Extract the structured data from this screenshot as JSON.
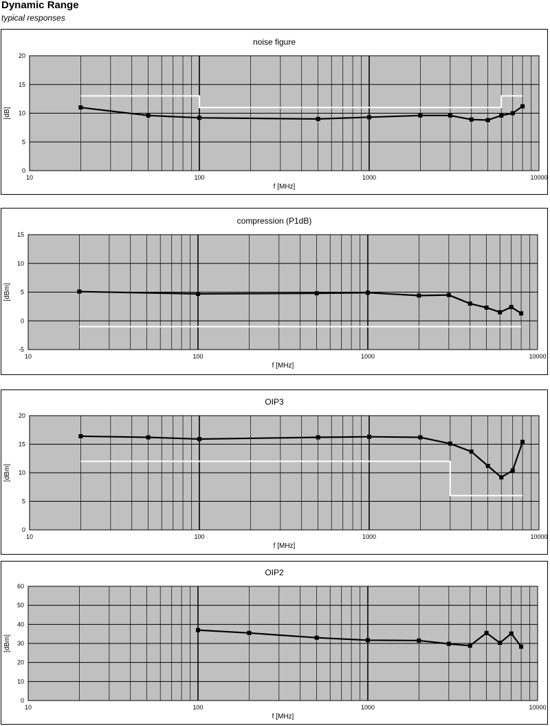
{
  "header": {
    "title": "Dynamic Range",
    "subtitle": "typical responses"
  },
  "chart_data": [
    {
      "type": "line",
      "title": "noise figure",
      "xlabel": "f [MHz]",
      "ylabel": "[dB]",
      "xscale": "log",
      "xlim": [
        10,
        10000
      ],
      "ylim": [
        0,
        20
      ],
      "yticks": [
        0,
        5,
        10,
        15,
        20
      ],
      "xtick_labels": [
        "10",
        "100",
        "1000",
        "10000"
      ],
      "grid": true,
      "plot_bg": "#c0c0c0",
      "series": [
        {
          "color": "#000000",
          "markers": true,
          "x": [
            20,
            50,
            100,
            500,
            1000,
            2000,
            3000,
            4000,
            5000,
            6000,
            7000,
            8000
          ],
          "y": [
            11,
            9.6,
            9.2,
            9.0,
            9.3,
            9.6,
            9.6,
            8.9,
            8.8,
            9.6,
            10,
            11.2
          ]
        },
        {
          "color": "#ffffff",
          "markers": false,
          "step": true,
          "x": [
            20,
            100,
            100,
            6000,
            6000,
            8000
          ],
          "y": [
            13,
            13,
            11,
            11,
            13,
            13
          ]
        }
      ]
    },
    {
      "type": "line",
      "title": "compression (P1dB)",
      "xlabel": "f [MHz]",
      "ylabel": "[dBm]",
      "xscale": "log",
      "xlim": [
        10,
        10000
      ],
      "ylim": [
        -5,
        15
      ],
      "yticks": [
        -5,
        0,
        5,
        10,
        15
      ],
      "xtick_labels": [
        "10",
        "100",
        "1000",
        "10000"
      ],
      "grid": true,
      "plot_bg": "#c0c0c0",
      "series": [
        {
          "color": "#000000",
          "markers": true,
          "x": [
            20,
            100,
            500,
            1000,
            2000,
            3000,
            4000,
            5000,
            6000,
            7000,
            8000
          ],
          "y": [
            5.1,
            4.7,
            4.8,
            4.9,
            4.4,
            4.5,
            3.0,
            2.3,
            1.5,
            2.4,
            1.3
          ]
        },
        {
          "color": "#ffffff",
          "markers": false,
          "x": [
            20,
            8000
          ],
          "y": [
            -1,
            -1
          ]
        }
      ]
    },
    {
      "type": "line",
      "title": "OIP3",
      "xlabel": "f [MHz]",
      "ylabel": "[dBm]",
      "xscale": "log",
      "xlim": [
        10,
        10000
      ],
      "ylim": [
        0,
        20
      ],
      "yticks": [
        0,
        5,
        10,
        15,
        20
      ],
      "xtick_labels": [
        "10",
        "100",
        "1000",
        "10000"
      ],
      "grid": true,
      "plot_bg": "#c0c0c0",
      "series": [
        {
          "color": "#000000",
          "markers": true,
          "x": [
            20,
            50,
            100,
            500,
            1000,
            2000,
            3000,
            4000,
            5000,
            6000,
            7000,
            8000
          ],
          "y": [
            16.4,
            16.2,
            15.9,
            16.2,
            16.3,
            16.2,
            15.1,
            13.7,
            11.2,
            9.2,
            10.4,
            15.4
          ]
        },
        {
          "color": "#ffffff",
          "markers": false,
          "step": true,
          "x": [
            20,
            3000,
            3000,
            8000
          ],
          "y": [
            12,
            12,
            6,
            6
          ]
        }
      ]
    },
    {
      "type": "line",
      "title": "OIP2",
      "xlabel": "f [MHz]",
      "ylabel": "[dBm]",
      "xscale": "log",
      "xlim": [
        10,
        10000
      ],
      "ylim": [
        0,
        60
      ],
      "yticks": [
        0,
        10,
        20,
        30,
        40,
        50,
        60
      ],
      "xtick_labels": [
        "10",
        "100",
        "1000",
        "10000"
      ],
      "grid": true,
      "plot_bg": "#c0c0c0",
      "series": [
        {
          "color": "#000000",
          "markers": true,
          "x": [
            100,
            200,
            500,
            1000,
            2000,
            3000,
            4000,
            5000,
            6000,
            7000,
            8000
          ],
          "y": [
            37,
            35.5,
            33,
            31.7,
            31.5,
            29.8,
            28.8,
            35.5,
            30.3,
            35.2,
            28.3
          ]
        }
      ]
    }
  ]
}
